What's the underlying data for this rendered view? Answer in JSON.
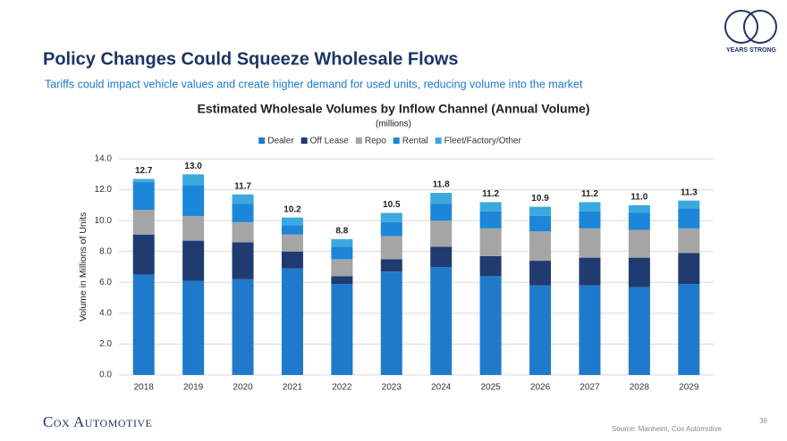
{
  "slide": {
    "title": "Policy Changes Could Squeeze Wholesale Flows",
    "subtitle": "Tariffs could impact vehicle values and create higher demand for used units, reducing volume into the market",
    "logo": "Cox Automotive",
    "badge": "YEARS STRONG",
    "source": "Source: Manheim, Cox Automotive",
    "page": "36"
  },
  "chart_data": {
    "type": "stacked-bar",
    "title": "Estimated Wholesale Volumes by Inflow Channel (Annual Volume)",
    "subtitle": "(millions)",
    "y_label": "Volume in Millions of Units",
    "categories": [
      "2018",
      "2019",
      "2020",
      "2021",
      "2022",
      "2023",
      "2024",
      "2025",
      "2026",
      "2027",
      "2028",
      "2029"
    ],
    "series": [
      {
        "name": "Dealer",
        "color": "#1f7acb",
        "values": [
          6.5,
          6.1,
          6.2,
          6.9,
          5.9,
          6.7,
          7.0,
          6.4,
          5.8,
          5.8,
          5.7,
          5.9
        ]
      },
      {
        "name": "Off Lease",
        "color": "#1f3b70",
        "values": [
          2.6,
          2.6,
          2.4,
          1.1,
          0.5,
          0.8,
          1.3,
          1.3,
          1.6,
          1.8,
          1.9,
          2.0
        ]
      },
      {
        "name": "Repo",
        "color": "#a5a5a5",
        "values": [
          1.6,
          1.6,
          1.3,
          1.1,
          1.1,
          1.5,
          1.7,
          1.8,
          1.9,
          1.9,
          1.8,
          1.6
        ]
      },
      {
        "name": "Rental",
        "color": "#1c86d9",
        "values": [
          1.8,
          2.0,
          1.2,
          0.6,
          0.8,
          0.9,
          1.1,
          1.1,
          1.0,
          1.1,
          1.1,
          1.3
        ]
      },
      {
        "name": "Fleet/Factory/Other",
        "color": "#3ba9dd",
        "values": [
          0.2,
          0.7,
          0.6,
          0.5,
          0.5,
          0.6,
          0.7,
          0.6,
          0.6,
          0.6,
          0.5,
          0.5
        ]
      }
    ],
    "totals": {
      "values": [
        12.7,
        13.0,
        11.7,
        10.2,
        8.8,
        10.5,
        11.8,
        11.2,
        10.9,
        11.2,
        11.0,
        11.3
      ],
      "value_labels": [
        "12.7",
        "13.0",
        "11.7",
        "10.2",
        "8.8",
        "10.5",
        "11.8",
        "11.2",
        "10.9",
        "11.2",
        "11.0",
        "11.3"
      ]
    },
    "ylim": [
      0,
      14
    ],
    "yticks": [
      {
        "value": 0,
        "label": "0.0"
      },
      {
        "value": 2,
        "label": "2.0"
      },
      {
        "value": 4,
        "label": "4.0"
      },
      {
        "value": 6,
        "label": "6.0"
      },
      {
        "value": 8,
        "label": "8.0"
      },
      {
        "value": 10,
        "label": "10.0"
      },
      {
        "value": 12,
        "label": "12.0"
      },
      {
        "value": 14,
        "label": "14.0"
      }
    ],
    "grid": true,
    "legend": "top"
  }
}
